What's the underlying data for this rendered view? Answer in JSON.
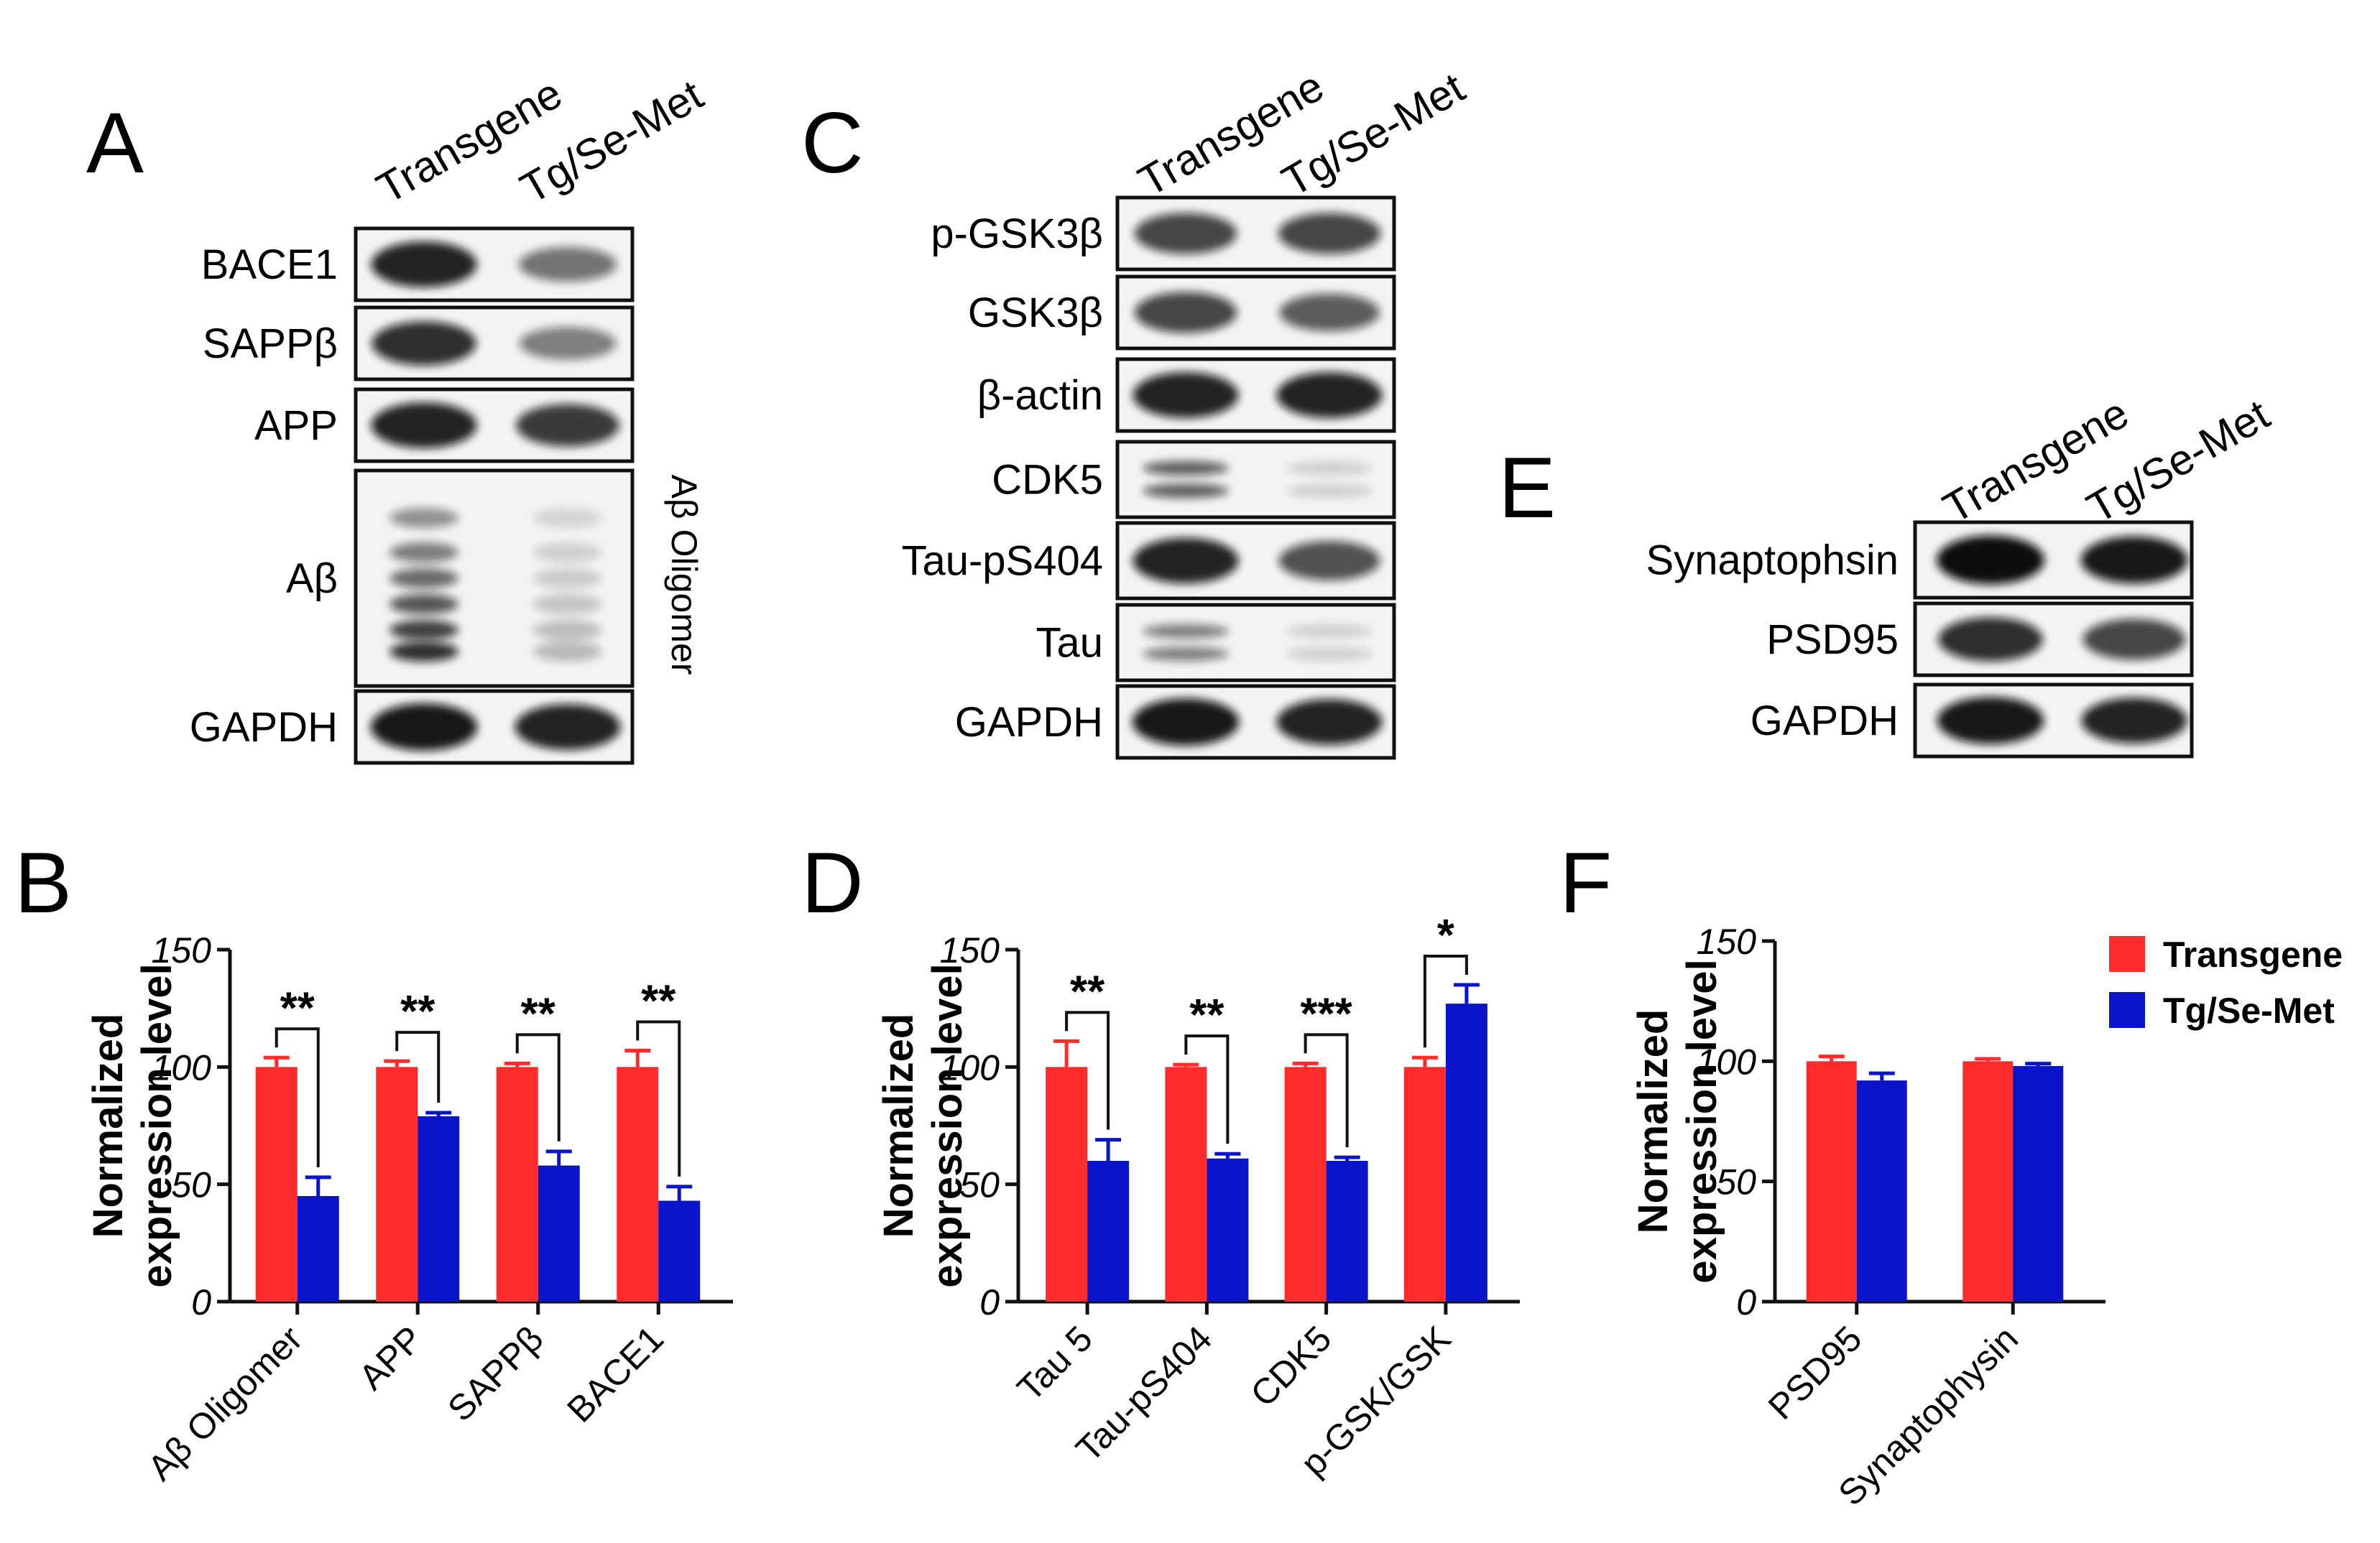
{
  "colors": {
    "transgene": "#ff2a2a",
    "tg_se_met": "#0a14c8",
    "band": "#0d0d0d",
    "axis": "#111111"
  },
  "blots": [
    {
      "panel": "A",
      "lanes": [
        "Transgene",
        "Tg/Se-Met"
      ],
      "rows": [
        {
          "label": "BACE1",
          "bands": [
            0.9,
            0.55
          ]
        },
        {
          "label": "SAPPβ",
          "bands": [
            0.85,
            0.5
          ]
        },
        {
          "label": "APP",
          "bands": [
            0.9,
            0.8
          ]
        },
        {
          "label": "Aβ",
          "bands": [
            0.85,
            0.25
          ]
        },
        {
          "label": "GAPDH",
          "bands": [
            0.95,
            0.9
          ]
        }
      ],
      "side_label": "Aβ Oligomer"
    },
    {
      "panel": "C",
      "lanes": [
        "Transgene",
        "Tg/Se-Met"
      ],
      "rows": [
        {
          "label": "p-GSK3β",
          "bands": [
            0.75,
            0.75
          ]
        },
        {
          "label": "GSK3β",
          "bands": [
            0.75,
            0.65
          ]
        },
        {
          "label": "β-actin",
          "bands": [
            0.9,
            0.9
          ]
        },
        {
          "label": "CDK5",
          "bands": [
            0.65,
            0.15
          ]
        },
        {
          "label": "Tau-pS404",
          "bands": [
            0.9,
            0.7
          ]
        },
        {
          "label": "Tau",
          "bands": [
            0.5,
            0.15
          ]
        },
        {
          "label": "GAPDH",
          "bands": [
            0.95,
            0.9
          ]
        }
      ]
    },
    {
      "panel": "E",
      "lanes": [
        "Transgene",
        "Tg/Se-Met"
      ],
      "rows": [
        {
          "label": "Synaptophsin",
          "bands": [
            1.0,
            0.95
          ]
        },
        {
          "label": "PSD95",
          "bands": [
            0.85,
            0.75
          ]
        },
        {
          "label": "GAPDH",
          "bands": [
            0.95,
            0.9
          ]
        }
      ]
    }
  ],
  "chart_data": [
    {
      "panel": "B",
      "type": "bar",
      "ylabel": [
        "Normalized",
        "expression level"
      ],
      "ylim": [
        0,
        150
      ],
      "yticks": [
        "0",
        "50",
        "100",
        "150"
      ],
      "categories": [
        "Aβ Oligomer",
        "APP",
        "SAPPβ",
        "BACE1"
      ],
      "series": [
        {
          "name": "Transgene",
          "values": [
            100,
            100,
            100,
            100
          ],
          "errors": [
            4,
            2.5,
            1.5,
            7
          ]
        },
        {
          "name": "Tg/Se-Met",
          "values": [
            45,
            79,
            58,
            43
          ],
          "errors": [
            8,
            1.5,
            6,
            6
          ]
        }
      ],
      "significance": [
        "**",
        "**",
        "**",
        "**"
      ]
    },
    {
      "panel": "D",
      "type": "bar",
      "ylabel": [
        "Normalized",
        "expression level"
      ],
      "ylim": [
        0,
        150
      ],
      "yticks": [
        "0",
        "50",
        "100",
        "150"
      ],
      "categories": [
        "Tau 5",
        "Tau-pS404",
        "CDK5",
        "p-GSK/GSK"
      ],
      "series": [
        {
          "name": "Transgene",
          "values": [
            100,
            100,
            100,
            100
          ],
          "errors": [
            11,
            1,
            1.5,
            4
          ]
        },
        {
          "name": "Tg/Se-Met",
          "values": [
            60,
            61,
            60,
            127
          ],
          "errors": [
            9,
            2,
            1.5,
            8
          ]
        }
      ],
      "significance": [
        "**",
        "**",
        "***",
        "*"
      ]
    },
    {
      "panel": "F",
      "type": "bar",
      "ylabel": [
        "Normalized",
        "expression level"
      ],
      "ylim": [
        0,
        150
      ],
      "yticks": [
        "0",
        "50",
        "100",
        "150"
      ],
      "categories": [
        "PSD95",
        "Synaptophysin"
      ],
      "series": [
        {
          "name": "Transgene",
          "values": [
            100,
            100
          ],
          "errors": [
            2,
            1
          ]
        },
        {
          "name": "Tg/Se-Met",
          "values": [
            92,
            98
          ],
          "errors": [
            3,
            1
          ]
        }
      ],
      "significance": [
        "",
        ""
      ]
    }
  ],
  "legend": {
    "position": "top-right",
    "items": [
      "Transgene",
      "Tg/Se-Met"
    ]
  }
}
